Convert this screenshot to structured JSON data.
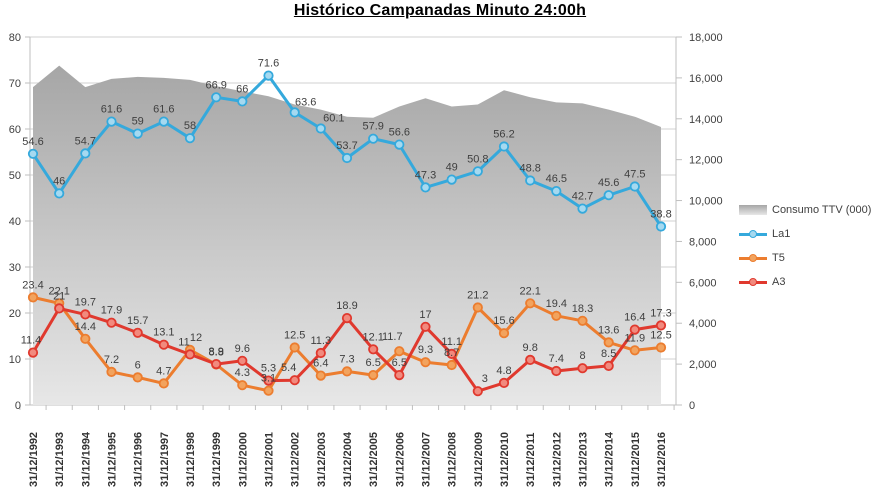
{
  "title": "Histórico Campanadas Minuto 24:00h",
  "legend": {
    "items": [
      {
        "label": "Consumo TTV (000)",
        "type": "area"
      },
      {
        "label": "La1",
        "type": "line",
        "series": 0
      },
      {
        "label": "T5",
        "type": "line",
        "series": 1
      },
      {
        "label": "A3",
        "type": "line",
        "series": 2
      }
    ]
  },
  "chart_data": {
    "type": "combo",
    "title": "Histórico Campanadas Minuto 24:00h",
    "grid": true,
    "legend_position": "right",
    "categories": [
      "31/12/1992",
      "31/12/1993",
      "31/12/1994",
      "31/12/1995",
      "31/12/1996",
      "31/12/1997",
      "31/12/1998",
      "31/12/1999",
      "31/12/2000",
      "31/12/2001",
      "31/12/2002",
      "31/12/2003",
      "31/12/2004",
      "31/12/2005",
      "31/12/2006",
      "31/12/2007",
      "31/12/2008",
      "31/12/2009",
      "31/12/2010",
      "31/12/2011",
      "31/12/2012",
      "31/12/2013",
      "31/12/2014",
      "31/12/2015",
      "31/12/2016"
    ],
    "y_left": {
      "min": 0,
      "max": 80,
      "ticks": [
        "0",
        "10",
        "20",
        "30",
        "40",
        "50",
        "60",
        "70",
        "80"
      ]
    },
    "y_right": {
      "min": 0,
      "max": 18000,
      "ticks": [
        "0",
        "2,000",
        "4,000",
        "6,000",
        "8,000",
        "10,000",
        "12,000",
        "14,000",
        "16,000",
        "18,000"
      ]
    },
    "area_series": {
      "name": "Consumo TTV (000)",
      "axis": "right",
      "type": "area",
      "color_top": "#a6a6a6",
      "color_bottom": "#e7e7e7",
      "values": [
        15550,
        16600,
        15550,
        15950,
        16050,
        16000,
        15900,
        15600,
        15350,
        15100,
        14700,
        14450,
        14100,
        14050,
        14600,
        15000,
        14600,
        14700,
        15400,
        15050,
        14800,
        14750,
        14450,
        14100,
        13600
      ]
    },
    "series": [
      {
        "name": "La1",
        "axis": "left",
        "type": "line",
        "color": "#35a9dc",
        "marker_fill": "#a5d9f0",
        "values": [
          54.6,
          46,
          54.7,
          61.6,
          59,
          61.6,
          58,
          66.9,
          66,
          71.6,
          63.6,
          60.1,
          53.7,
          57.9,
          56.6,
          47.3,
          49,
          50.8,
          56.2,
          48.8,
          46.5,
          42.7,
          45.6,
          47.5,
          38.8
        ],
        "label_offsets": {
          "10": [
            11,
            2
          ],
          "11": [
            13,
            2
          ]
        }
      },
      {
        "name": "T5",
        "axis": "left",
        "type": "line",
        "color": "#ec7d2f",
        "marker_fill": "#f2a35e",
        "values": [
          23.4,
          22.1,
          14.4,
          7.2,
          6,
          4.7,
          12,
          8.8,
          4.3,
          3.1,
          12.5,
          6.4,
          7.3,
          6.5,
          11.7,
          9.3,
          8.7,
          21.2,
          15.6,
          22.1,
          19.4,
          18.3,
          13.6,
          11.9,
          12.5
        ],
        "label_offsets": {
          "6": [
            6,
            0
          ],
          "14": [
            -7,
            -2
          ]
        }
      },
      {
        "name": "A3",
        "axis": "left",
        "type": "line",
        "color": "#e0392e",
        "marker_fill": "#f18a7e",
        "values": [
          11.4,
          21,
          19.7,
          17.9,
          15.7,
          13.1,
          11,
          8.9,
          9.6,
          5.3,
          5.4,
          11.3,
          18.9,
          12.1,
          6.5,
          17,
          11.1,
          3,
          4.8,
          9.8,
          7.4,
          8,
          8.5,
          16.4,
          17.3
        ],
        "label_offsets": {
          "0": [
            -2,
            0
          ],
          "6": [
            -6,
            0
          ],
          "10": [
            -6,
            0
          ],
          "17": [
            7,
            0
          ]
        }
      }
    ]
  }
}
